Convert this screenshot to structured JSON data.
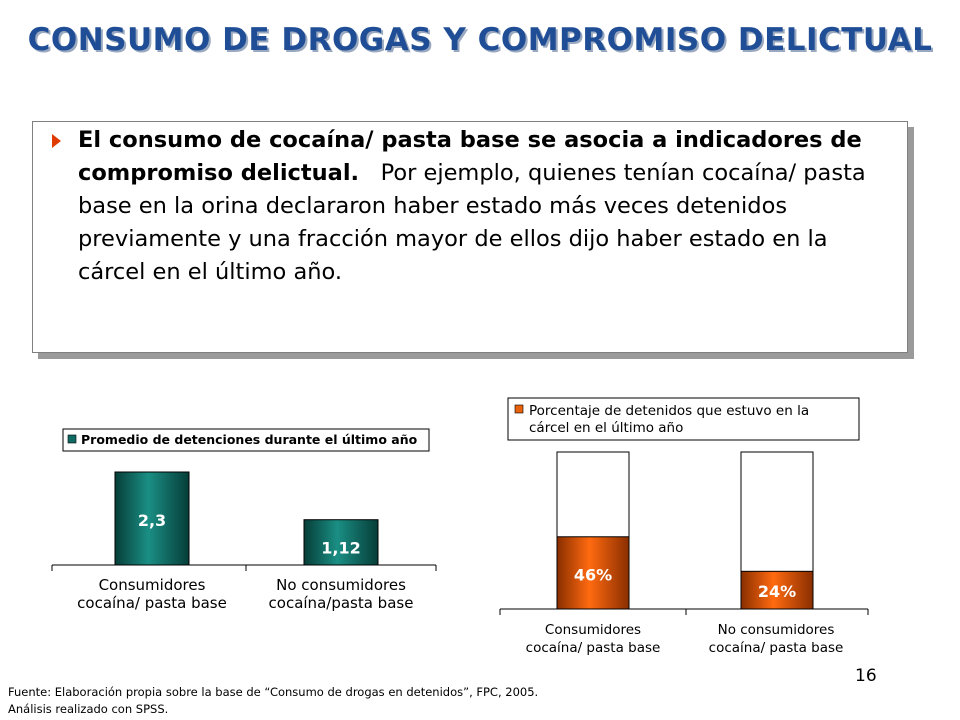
{
  "title": "CONSUMO DE DROGAS Y COMPROMISO DELICTUAL",
  "bullet": {
    "bold": "El consumo de cocaína/ pasta base se asocia a indicadores de compromiso delictual.",
    "normal": "Por ejemplo, quienes tenían cocaína/ pasta base en la orina declararon haber estado más veces detenidos previamente y una fracción mayor de ellos dijo haber estado en la cárcel en el último año."
  },
  "chart_data": [
    {
      "type": "bar",
      "legend": "Promedio de detenciones durante el último año",
      "categories": [
        "Consumidores cocaína/ pasta base",
        "No consumidores cocaína/pasta base"
      ],
      "category_lines": [
        [
          "Consumidores",
          "cocaína/ pasta base"
        ],
        [
          "No consumidores",
          "cocaína/pasta base"
        ]
      ],
      "values": [
        2.3,
        1.12
      ],
      "value_labels": [
        "2,3",
        "1,12"
      ],
      "ylim": [
        0,
        2.6
      ],
      "color": "#0f6b63"
    },
    {
      "type": "bar",
      "legend_lines": [
        "Porcentaje de detenidos que estuvo en la",
        "cárcel en el último año"
      ],
      "categories": [
        "Consumidores cocaína/ pasta base",
        "No consumidores cocaína/ pasta base"
      ],
      "category_lines": [
        [
          "Consumidores",
          "cocaína/ pasta base"
        ],
        [
          "No consumidores",
          "cocaína/ pasta base"
        ]
      ],
      "values": [
        46,
        24
      ],
      "value_labels": [
        "46%",
        "24%"
      ],
      "ylim": [
        0,
        100
      ],
      "color": "#e8620e"
    }
  ],
  "source": {
    "line1": "Fuente: Elaboración propia sobre la base de “Consumo de drogas en detenidos”, FPC, 2005.",
    "line2": "Análisis realizado con SPSS."
  },
  "page_number": "16"
}
